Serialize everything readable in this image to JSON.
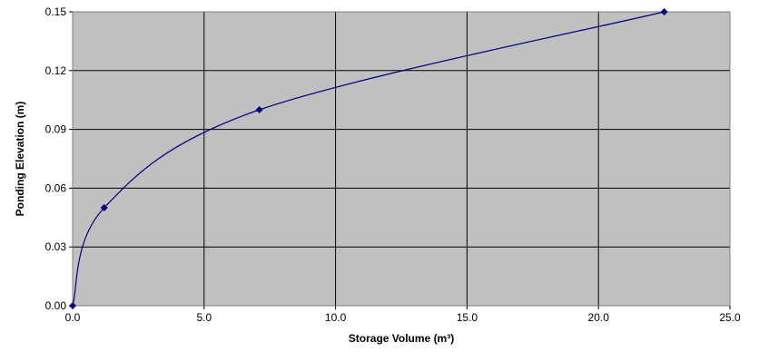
{
  "chart_data": {
    "type": "line",
    "title": "",
    "xlabel": "Storage Volume (m³)",
    "ylabel": "Ponding Elevation (m)",
    "xlim": [
      0,
      25
    ],
    "ylim": [
      0,
      0.15
    ],
    "x_ticks": [
      0,
      5,
      10,
      15,
      20,
      25
    ],
    "x_tick_labels": [
      "0.0",
      "5.0",
      "10.0",
      "15.0",
      "20.0",
      "25.0"
    ],
    "y_ticks": [
      0,
      0.03,
      0.06,
      0.09,
      0.12,
      0.15
    ],
    "y_tick_labels": [
      "0.00",
      "0.03",
      "0.06",
      "0.09",
      "0.12",
      "0.15"
    ],
    "grid": true,
    "legend": "none",
    "colors": {
      "plot_background": "#c0c0c0",
      "gridline": "#000000",
      "series": "#000080"
    },
    "series": [
      {
        "marker": "diamond",
        "smooth": true,
        "points": [
          {
            "x": 0.0,
            "y": 0.0
          },
          {
            "x": 1.2,
            "y": 0.05
          },
          {
            "x": 7.1,
            "y": 0.1
          },
          {
            "x": 22.5,
            "y": 0.15
          }
        ]
      }
    ]
  }
}
